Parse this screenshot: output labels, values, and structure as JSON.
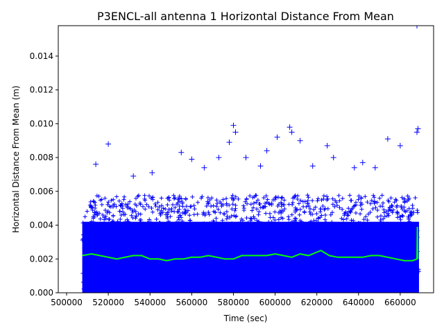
{
  "chart_data": {
    "type": "scatter",
    "title": "P3ENCL-all antenna 1 Horizontal Distance From Mean",
    "xlabel": "Time (sec)",
    "ylabel": "Horizontal Distance From Mean (m)",
    "xlim": [
      496000,
      676000
    ],
    "ylim": [
      0.0,
      0.0158
    ],
    "grid": false,
    "legend": "none",
    "x_ticks": [
      500000,
      520000,
      540000,
      560000,
      580000,
      600000,
      620000,
      640000,
      660000
    ],
    "x_tick_labels": [
      "500000",
      "520000",
      "540000",
      "560000",
      "580000",
      "600000",
      "620000",
      "640000",
      "660000"
    ],
    "y_ticks": [
      0.0,
      0.002,
      0.004,
      0.006,
      0.008,
      0.01,
      0.012,
      0.014
    ],
    "y_tick_labels": [
      "0.000",
      "0.002",
      "0.004",
      "0.006",
      "0.008",
      "0.010",
      "0.012",
      "0.014"
    ],
    "series": [
      {
        "marker": "+",
        "color": "#0000ff",
        "x_range": [
          507500,
          669000
        ],
        "typical_upper": 0.0055,
        "outliers": [
          {
            "x": 520000,
            "y": 0.0088
          },
          {
            "x": 580000,
            "y": 0.0099
          },
          {
            "x": 581000,
            "y": 0.0095
          },
          {
            "x": 596000,
            "y": 0.0084
          },
          {
            "x": 601000,
            "y": 0.0092
          },
          {
            "x": 607000,
            "y": 0.0098
          },
          {
            "x": 608000,
            "y": 0.0095
          },
          {
            "x": 612000,
            "y": 0.009
          },
          {
            "x": 625000,
            "y": 0.0087
          },
          {
            "x": 654000,
            "y": 0.0091
          },
          {
            "x": 660000,
            "y": 0.0087
          },
          {
            "x": 668000,
            "y": 0.0158
          },
          {
            "x": 668500,
            "y": 0.0097
          },
          {
            "x": 668000,
            "y": 0.0095
          },
          {
            "x": 555000,
            "y": 0.0083
          },
          {
            "x": 573000,
            "y": 0.008
          },
          {
            "x": 578000,
            "y": 0.0089
          },
          {
            "x": 514000,
            "y": 0.0076
          },
          {
            "x": 532000,
            "y": 0.0069
          },
          {
            "x": 541000,
            "y": 0.0071
          },
          {
            "x": 560000,
            "y": 0.0079
          },
          {
            "x": 566000,
            "y": 0.0074
          },
          {
            "x": 586000,
            "y": 0.008
          },
          {
            "x": 593000,
            "y": 0.0075
          },
          {
            "x": 618000,
            "y": 0.0075
          },
          {
            "x": 628000,
            "y": 0.008
          },
          {
            "x": 638000,
            "y": 0.0074
          },
          {
            "x": 642000,
            "y": 0.0077
          },
          {
            "x": 648000,
            "y": 0.0074
          }
        ]
      },
      {
        "marker": "line",
        "color": "#00ff00",
        "x": [
          507500,
          512000,
          516000,
          520000,
          524000,
          528000,
          532000,
          536000,
          540000,
          544000,
          548000,
          552000,
          556000,
          560000,
          564000,
          568000,
          572000,
          576000,
          580000,
          584000,
          588000,
          592000,
          596000,
          600000,
          604000,
          608000,
          612000,
          616000,
          620000,
          622000,
          626000,
          630000,
          634000,
          638000,
          642000,
          646000,
          650000,
          654000,
          658000,
          662000,
          666000,
          668000,
          668200,
          668400
        ],
        "y": [
          0.0022,
          0.0023,
          0.0022,
          0.0021,
          0.002,
          0.0021,
          0.0022,
          0.0022,
          0.002,
          0.002,
          0.0019,
          0.002,
          0.002,
          0.0021,
          0.0021,
          0.0022,
          0.0021,
          0.002,
          0.002,
          0.0022,
          0.0022,
          0.0022,
          0.0022,
          0.0023,
          0.0022,
          0.0021,
          0.0023,
          0.0022,
          0.0024,
          0.0025,
          0.0022,
          0.0021,
          0.0021,
          0.0021,
          0.0021,
          0.0022,
          0.0022,
          0.0021,
          0.002,
          0.0019,
          0.0019,
          0.002,
          0.0039,
          0.002
        ]
      }
    ]
  }
}
